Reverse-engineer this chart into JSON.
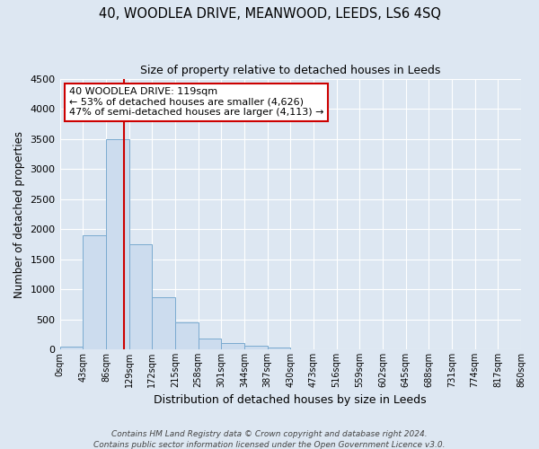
{
  "title": "40, WOODLEA DRIVE, MEANWOOD, LEEDS, LS6 4SQ",
  "subtitle": "Size of property relative to detached houses in Leeds",
  "xlabel": "Distribution of detached houses by size in Leeds",
  "ylabel": "Number of detached properties",
  "bin_edges": [
    0,
    43,
    86,
    129,
    172,
    215,
    258,
    301,
    344,
    387,
    430,
    473,
    516,
    559,
    602,
    645,
    688,
    731,
    774,
    817,
    860
  ],
  "bar_heights": [
    50,
    1900,
    3500,
    1750,
    860,
    450,
    175,
    100,
    60,
    30,
    0,
    0,
    0,
    0,
    0,
    0,
    0,
    0,
    0,
    0
  ],
  "bar_color": "#ccdcee",
  "bar_edge_color": "#7aaad0",
  "property_size": 119,
  "vline_color": "#cc0000",
  "annotation_title": "40 WOODLEA DRIVE: 119sqm",
  "annotation_line1": "← 53% of detached houses are smaller (4,626)",
  "annotation_line2": "47% of semi-detached houses are larger (4,113) →",
  "annotation_box_edgecolor": "#cc0000",
  "annotation_box_facecolor": "#ffffff",
  "ylim": [
    0,
    4500
  ],
  "yticks": [
    0,
    500,
    1000,
    1500,
    2000,
    2500,
    3000,
    3500,
    4000,
    4500
  ],
  "xlim": [
    0,
    860
  ],
  "bg_color": "#dde7f2",
  "plot_bg_color": "#dde7f2",
  "grid_color": "#ffffff",
  "footer1": "Contains HM Land Registry data © Crown copyright and database right 2024.",
  "footer2": "Contains public sector information licensed under the Open Government Licence v3.0."
}
